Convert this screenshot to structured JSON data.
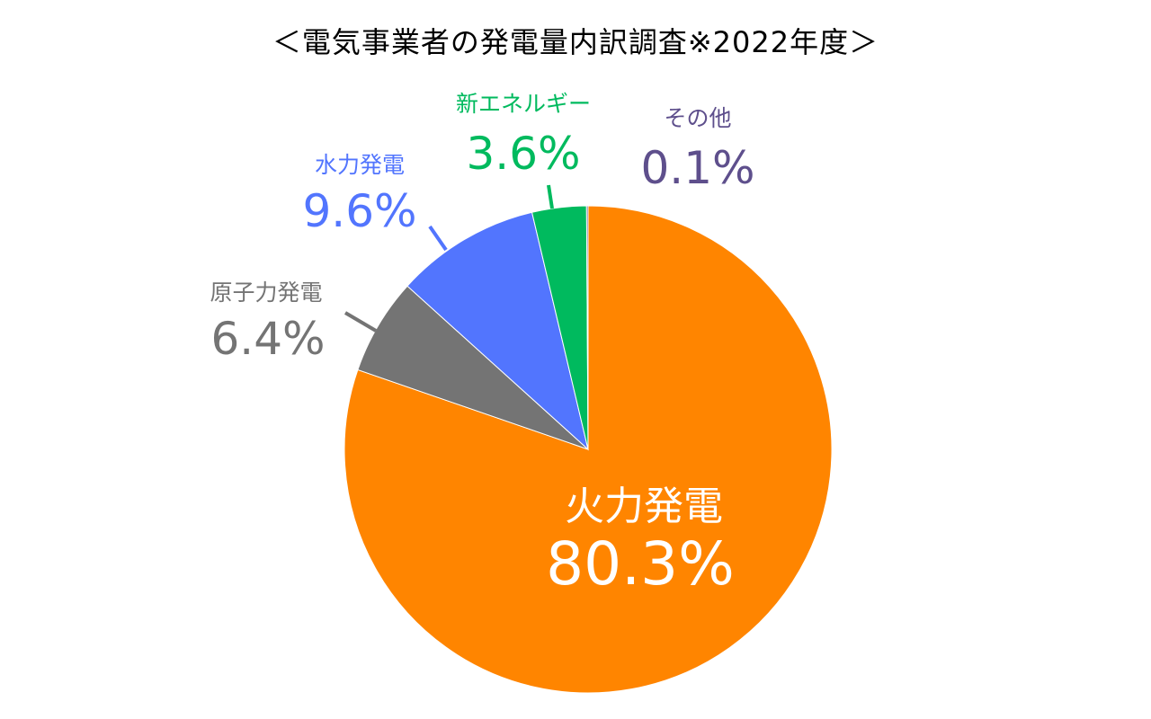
{
  "chart_data": {
    "type": "pie",
    "title": "＜電気事業者の発電量内訳調査※2022年度＞",
    "slices": [
      {
        "name": "火力発電",
        "label": "80.3%",
        "value": 80.3,
        "color": "#ff8500"
      },
      {
        "name": "原子力発電",
        "label": "6.4%",
        "value": 6.4,
        "color": "#747474"
      },
      {
        "name": "水力発電",
        "label": "9.6%",
        "value": 9.6,
        "color": "#5275fe"
      },
      {
        "name": "新エネルギー",
        "label": "3.6%",
        "value": 3.6,
        "color": "#00ba5e"
      },
      {
        "name": "その他",
        "label": "0.1%",
        "value": 0.1,
        "color": "#5e4f8c"
      }
    ],
    "start": "top",
    "direction": "clockwise"
  }
}
